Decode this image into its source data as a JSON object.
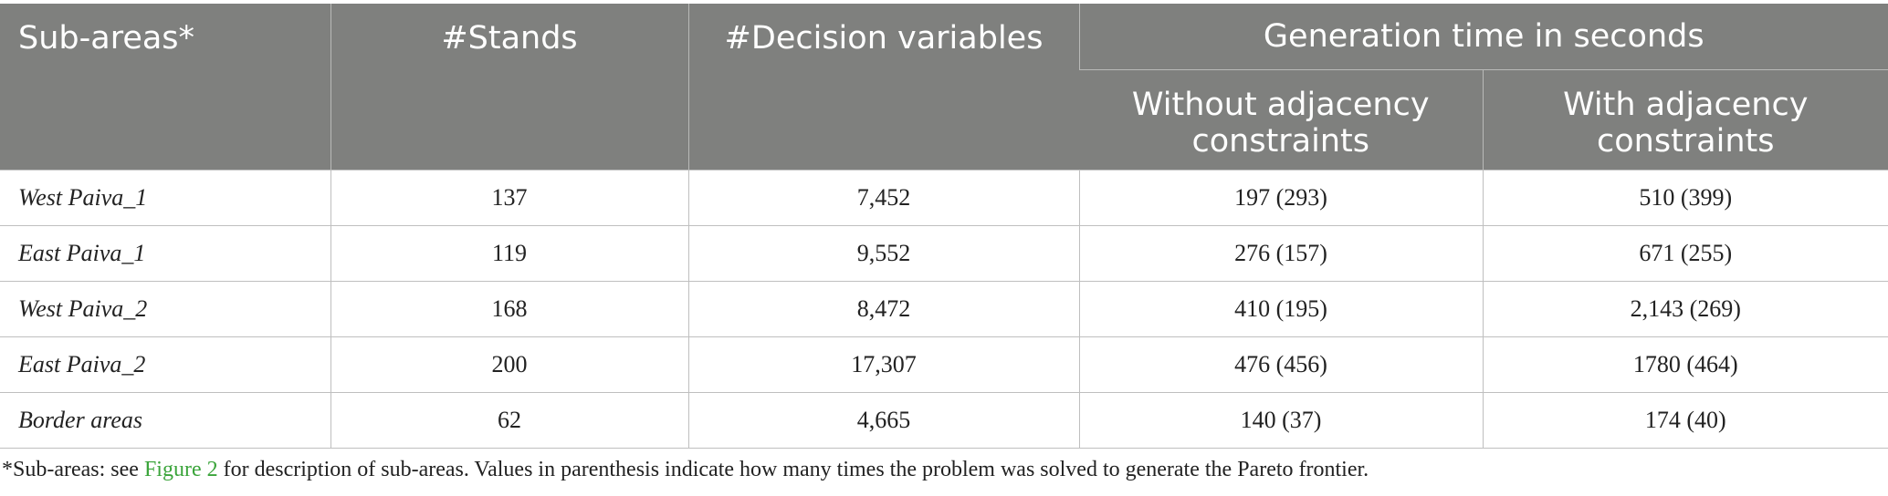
{
  "table": {
    "headers": {
      "sub_areas": "Sub-areas*",
      "stands": "#Stands",
      "decision_variables": "#Decision variables",
      "generation_time": "Generation time in seconds",
      "without_adjacency": "Without adjacency constraints",
      "with_adjacency": "With adjacency constraints"
    },
    "rows": [
      {
        "name": "West Paiva_1",
        "stands": "137",
        "decision_variables": "7,452",
        "without": "197 (293)",
        "with": "510 (399)"
      },
      {
        "name": "East Paiva_1",
        "stands": "119",
        "decision_variables": "9,552",
        "without": "276 (157)",
        "with": "671 (255)"
      },
      {
        "name": "West Paiva_2",
        "stands": "168",
        "decision_variables": "8,472",
        "without": "410 (195)",
        "with": "2,143 (269)"
      },
      {
        "name": "East Paiva_2",
        "stands": "200",
        "decision_variables": "17,307",
        "without": "476 (456)",
        "with": "1780 (464)"
      },
      {
        "name": "Border areas",
        "stands": "62",
        "decision_variables": "4,665",
        "without": "140 (37)",
        "with": "174 (40)"
      }
    ]
  },
  "footnote": {
    "prefix": "*Sub-areas: see ",
    "link": "Figure 2",
    "suffix": " for description of sub-areas. Values in parenthesis indicate how many times the problem was solved to generate the Pareto frontier."
  },
  "colors": {
    "header_bg": "#7f807e",
    "header_text": "#ffffff",
    "link": "#3aa43a"
  }
}
